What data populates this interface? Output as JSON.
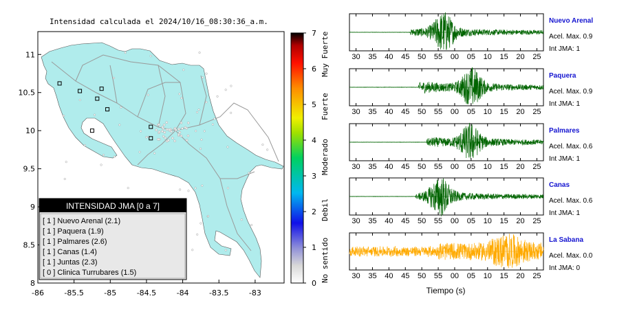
{
  "title": "Intensidad calculada el 2024/10/16_08:30:36_a.m.",
  "map": {
    "x_ticks": [
      "-86",
      "-85.5",
      "-85",
      "-84.5",
      "-84",
      "-83.5",
      "-83"
    ],
    "y_ticks": [
      "11",
      "10.5",
      "10",
      "9.5",
      "9",
      "8.5",
      "8"
    ],
    "land_color": "#b0ecec",
    "stations": [
      {
        "lon": -85.7,
        "lat": 10.62
      },
      {
        "lon": -85.42,
        "lat": 10.52
      },
      {
        "lon": -85.12,
        "lat": 10.55
      },
      {
        "lon": -85.04,
        "lat": 10.28
      },
      {
        "lon": -85.18,
        "lat": 10.42
      },
      {
        "lon": -85.25,
        "lat": 10.0
      },
      {
        "lon": -84.44,
        "lat": 10.05
      },
      {
        "lon": -84.44,
        "lat": 9.9
      }
    ]
  },
  "colorbar": {
    "ticks": [
      "0",
      "1",
      "2",
      "3",
      "4",
      "5",
      "6",
      "7"
    ],
    "labels": [
      "No sentido",
      "Debil",
      "Moderado",
      "Fuerte",
      "Muy Fuerte"
    ]
  },
  "legend": {
    "header": "INTENSIDAD JMA [0 a 7]",
    "items": [
      {
        "text": "[ 1 ]  Nuevo Arenal (2.1)"
      },
      {
        "text": "[ 1 ]  Paquera (1.9)"
      },
      {
        "text": "[ 1 ]  Palmares (2.6)"
      },
      {
        "text": "[ 1 ]  Canas (1.4)"
      },
      {
        "text": "[ 1 ]  Juntas (2.3)"
      },
      {
        "text": "[ 0 ]  Clinica Turrubares (1.5)"
      }
    ]
  },
  "chart_data": {
    "type": "line",
    "xlabel": "Tiempo (s)",
    "x_ticks": [
      "30",
      "35",
      "40",
      "45",
      "50",
      "55",
      "00",
      "05",
      "10",
      "15",
      "20",
      "25"
    ],
    "series": [
      {
        "name": "Nuevo Arenal",
        "acel": "Acel. Max. 0.9",
        "jma": "Int JMA: 1",
        "color": "#006400",
        "onset": 46.5,
        "peak": 56.5,
        "amp": 0.95
      },
      {
        "name": "Paquera",
        "acel": "Acel. Max. 0.9",
        "jma": "Int JMA: 1",
        "color": "#006400",
        "onset": 49,
        "peak": 65,
        "amp": 0.9
      },
      {
        "name": "Palmares",
        "acel": "Acel. Max. 0.6",
        "jma": "Int JMA: 1",
        "color": "#006400",
        "onset": 51.5,
        "peak": 64.5,
        "amp": 0.85
      },
      {
        "name": "Canas",
        "acel": "Acel. Max. 0.6",
        "jma": "Int JMA: 1",
        "color": "#006400",
        "onset": 48,
        "peak": 55.5,
        "amp": 0.9
      },
      {
        "name": "La Sabana",
        "acel": "Acel. Max. 0.0",
        "jma": "Int JMA: 0",
        "color": "#ffaa00",
        "onset": 28,
        "peak": 76,
        "amp": 0.9
      }
    ]
  }
}
